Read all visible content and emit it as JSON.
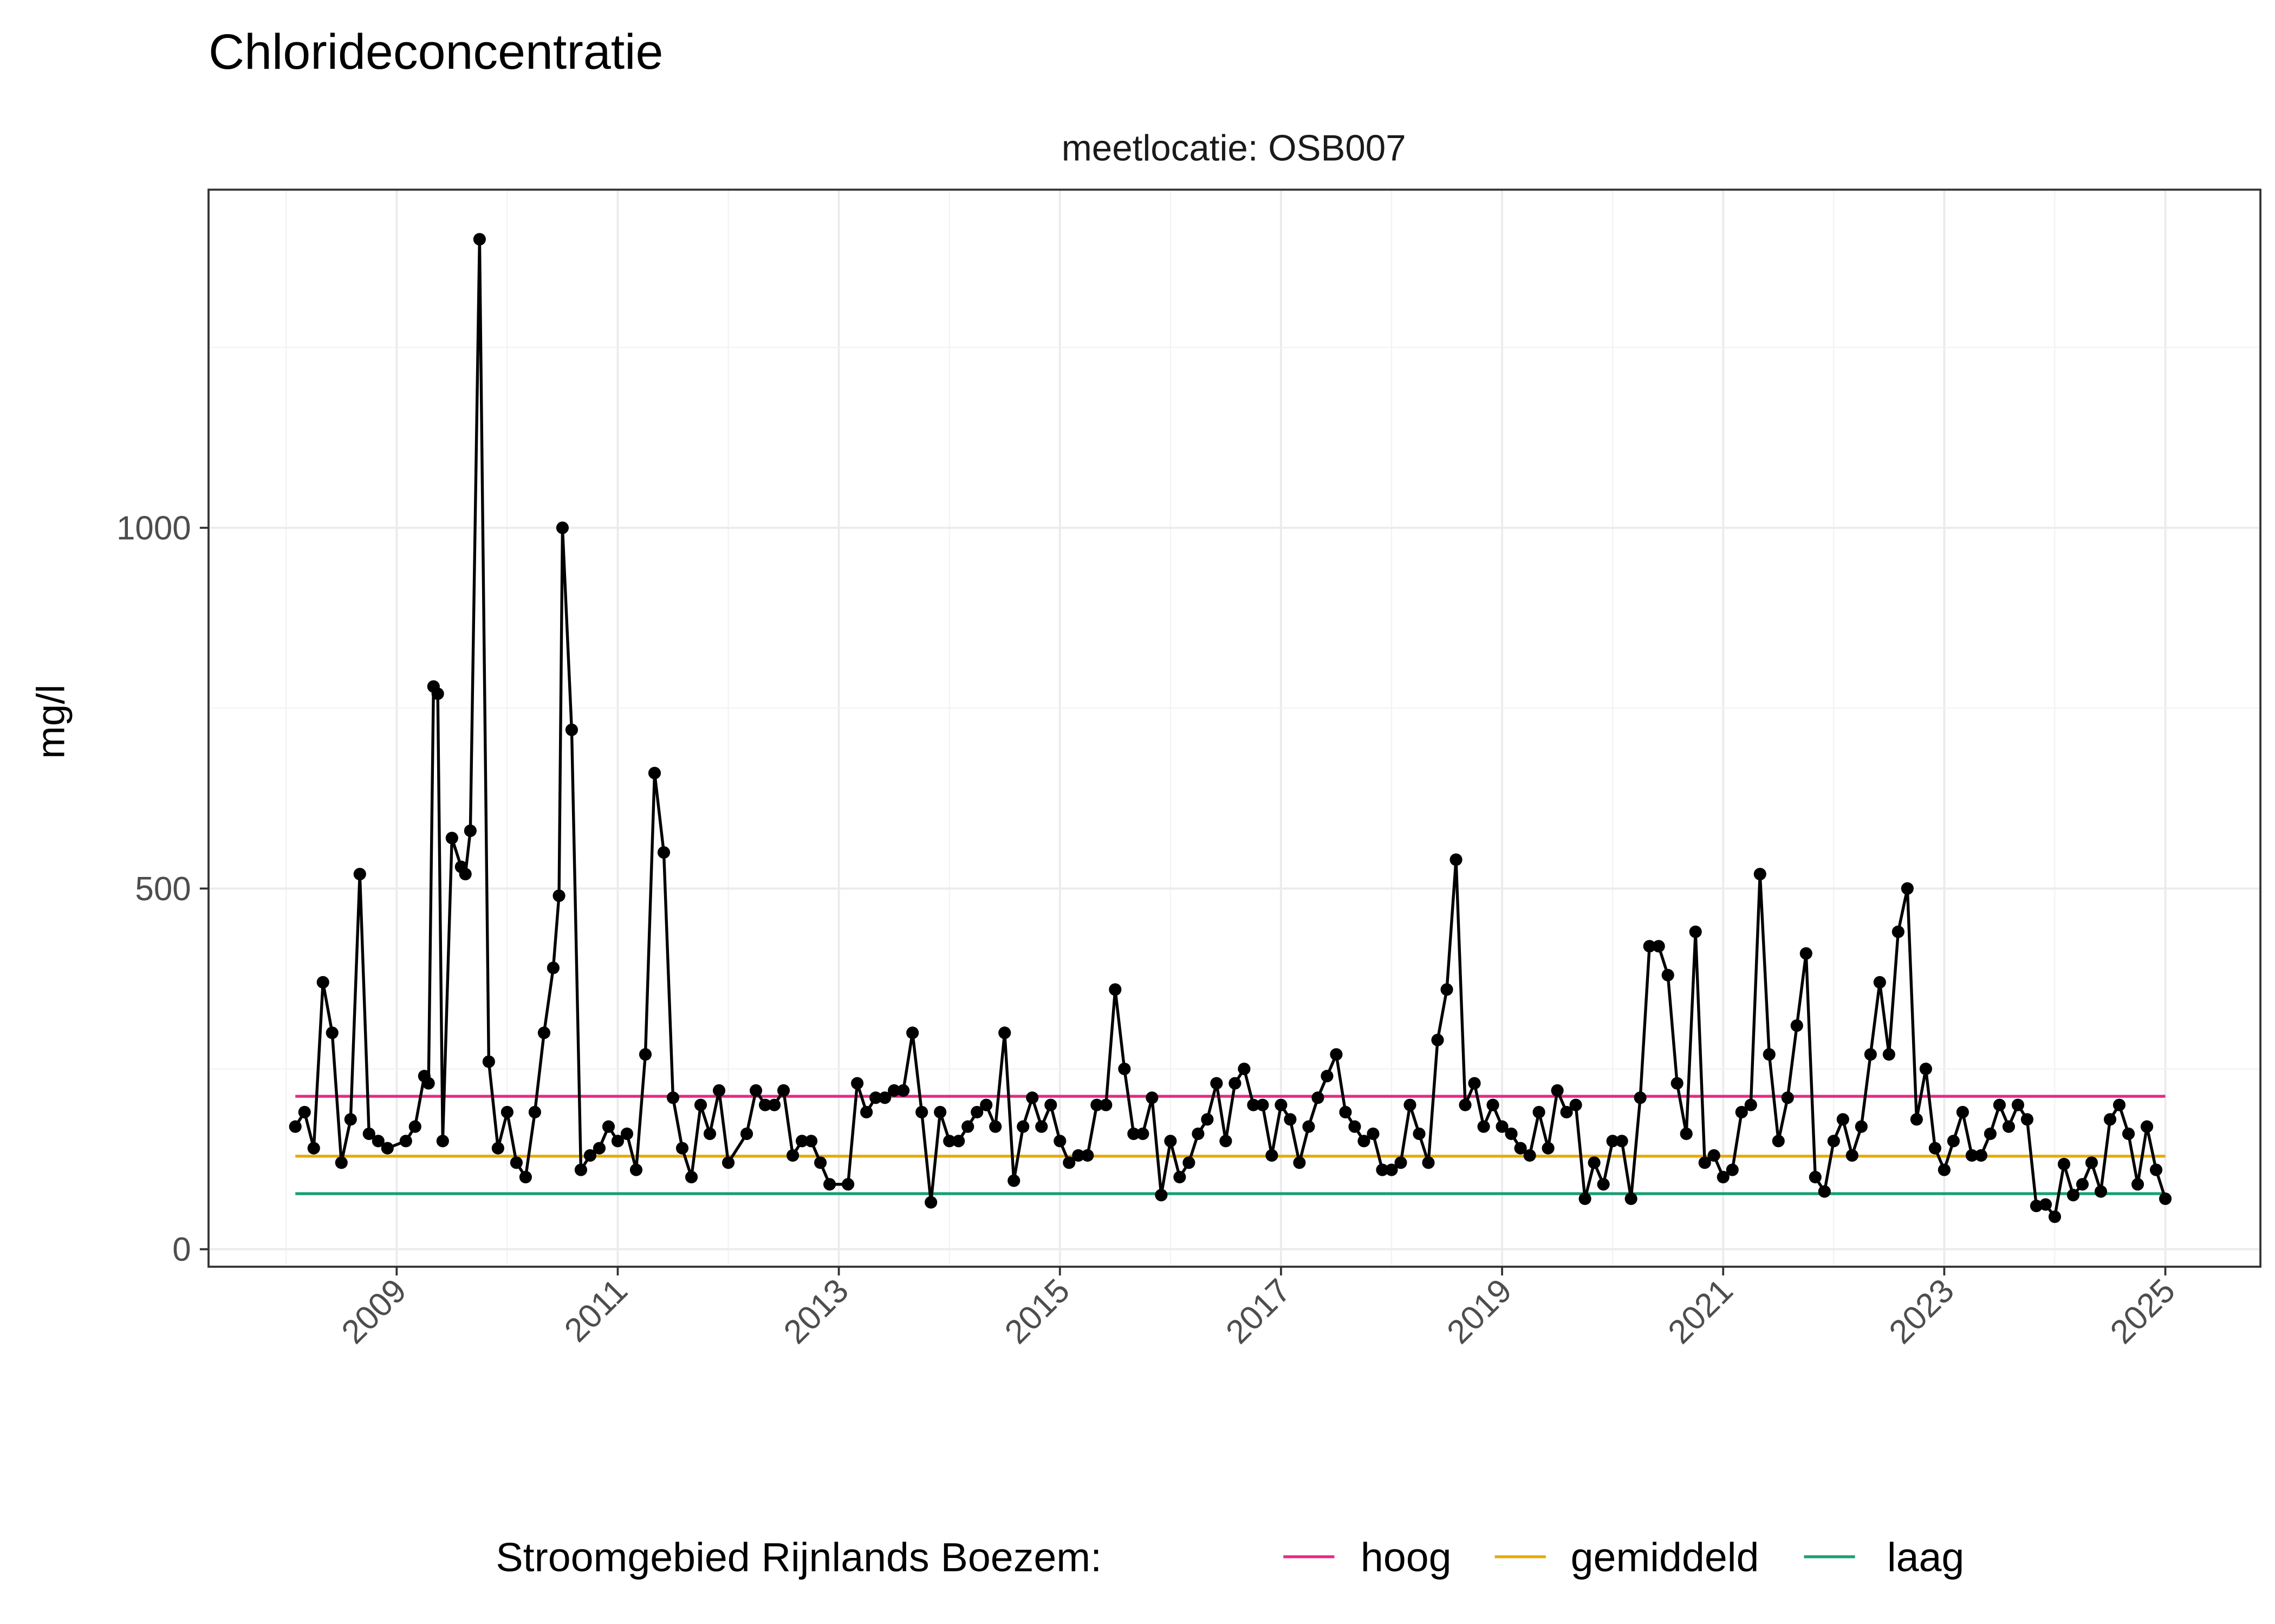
{
  "chart_data": {
    "type": "line",
    "title": "Chlorideconcentratie",
    "subtitle": "meetlocatie: OSB007",
    "xlabel": "",
    "ylabel": "mg/l",
    "xlim": [
      "2007-11",
      "2025-06"
    ],
    "ylim": [
      -25,
      1475
    ],
    "x_ticks": [
      "2009",
      "2011",
      "2013",
      "2015",
      "2017",
      "2019",
      "2021",
      "2023",
      "2025"
    ],
    "y_ticks": [
      0,
      500,
      1000
    ],
    "grid": true,
    "legend_position": "bottom",
    "legend_title": "Stroomgebied Rijnlands Boezem:",
    "reference_lines": [
      {
        "name": "hoog",
        "value": 212,
        "color": "#E7298A"
      },
      {
        "name": "gemiddeld",
        "value": 129,
        "color": "#E6AB02"
      },
      {
        "name": "laag",
        "value": 77,
        "color": "#1B9E77"
      }
    ],
    "series": [
      {
        "color": "#000000",
        "points": [
          [
            "2008-02",
            170
          ],
          [
            "2008-03",
            190
          ],
          [
            "2008-04",
            140
          ],
          [
            "2008-05",
            370
          ],
          [
            "2008-06",
            300
          ],
          [
            "2008-07",
            120
          ],
          [
            "2008-08",
            180
          ],
          [
            "2008-09",
            520
          ],
          [
            "2008-10",
            160
          ],
          [
            "2008-11",
            150
          ],
          [
            "2008-12",
            140
          ],
          [
            "2009-02",
            150
          ],
          [
            "2009-03",
            170
          ],
          [
            "2009-04",
            240
          ],
          [
            "2009-04-15",
            230
          ],
          [
            "2009-05",
            780
          ],
          [
            "2009-05-15",
            770
          ],
          [
            "2009-06",
            150
          ],
          [
            "2009-07",
            570
          ],
          [
            "2009-08",
            530
          ],
          [
            "2009-08-15",
            520
          ],
          [
            "2009-09",
            580
          ],
          [
            "2009-10",
            1400
          ],
          [
            "2009-11",
            260
          ],
          [
            "2009-12",
            140
          ],
          [
            "2010-01",
            190
          ],
          [
            "2010-02",
            120
          ],
          [
            "2010-03",
            100
          ],
          [
            "2010-04",
            190
          ],
          [
            "2010-05",
            300
          ],
          [
            "2010-06",
            390
          ],
          [
            "2010-06-20",
            490
          ],
          [
            "2010-07",
            1000
          ],
          [
            "2010-08",
            720
          ],
          [
            "2010-09",
            110
          ],
          [
            "2010-10",
            130
          ],
          [
            "2010-11",
            140
          ],
          [
            "2010-12",
            170
          ],
          [
            "2011-01",
            150
          ],
          [
            "2011-02",
            160
          ],
          [
            "2011-03",
            110
          ],
          [
            "2011-04",
            270
          ],
          [
            "2011-05",
            660
          ],
          [
            "2011-06",
            550
          ],
          [
            "2011-07",
            210
          ],
          [
            "2011-08",
            140
          ],
          [
            "2011-09",
            100
          ],
          [
            "2011-10",
            200
          ],
          [
            "2011-11",
            160
          ],
          [
            "2011-12",
            220
          ],
          [
            "2012-01",
            120
          ],
          [
            "2012-03",
            160
          ],
          [
            "2012-04",
            220
          ],
          [
            "2012-05",
            200
          ],
          [
            "2012-06",
            200
          ],
          [
            "2012-07",
            220
          ],
          [
            "2012-08",
            130
          ],
          [
            "2012-09",
            150
          ],
          [
            "2012-10",
            150
          ],
          [
            "2012-11",
            120
          ],
          [
            "2012-12",
            90
          ],
          [
            "2013-02",
            90
          ],
          [
            "2013-03",
            230
          ],
          [
            "2013-04",
            190
          ],
          [
            "2013-05",
            210
          ],
          [
            "2013-06",
            210
          ],
          [
            "2013-07",
            220
          ],
          [
            "2013-08",
            220
          ],
          [
            "2013-09",
            300
          ],
          [
            "2013-10",
            190
          ],
          [
            "2013-11",
            65
          ],
          [
            "2013-12",
            190
          ],
          [
            "2014-01",
            150
          ],
          [
            "2014-02",
            150
          ],
          [
            "2014-03",
            170
          ],
          [
            "2014-04",
            190
          ],
          [
            "2014-05",
            200
          ],
          [
            "2014-06",
            170
          ],
          [
            "2014-07",
            300
          ],
          [
            "2014-08",
            95
          ],
          [
            "2014-09",
            170
          ],
          [
            "2014-10",
            210
          ],
          [
            "2014-11",
            170
          ],
          [
            "2014-12",
            200
          ],
          [
            "2015-01",
            150
          ],
          [
            "2015-02",
            120
          ],
          [
            "2015-03",
            130
          ],
          [
            "2015-04",
            130
          ],
          [
            "2015-05",
            200
          ],
          [
            "2015-06",
            200
          ],
          [
            "2015-07",
            360
          ],
          [
            "2015-08",
            250
          ],
          [
            "2015-09",
            160
          ],
          [
            "2015-10",
            160
          ],
          [
            "2015-11",
            210
          ],
          [
            "2015-12",
            75
          ],
          [
            "2016-01",
            150
          ],
          [
            "2016-02",
            100
          ],
          [
            "2016-03",
            120
          ],
          [
            "2016-04",
            160
          ],
          [
            "2016-05",
            180
          ],
          [
            "2016-06",
            230
          ],
          [
            "2016-07",
            150
          ],
          [
            "2016-08",
            230
          ],
          [
            "2016-09",
            250
          ],
          [
            "2016-10",
            200
          ],
          [
            "2016-11",
            200
          ],
          [
            "2016-12",
            130
          ],
          [
            "2017-01",
            200
          ],
          [
            "2017-02",
            180
          ],
          [
            "2017-03",
            120
          ],
          [
            "2017-04",
            170
          ],
          [
            "2017-05",
            210
          ],
          [
            "2017-06",
            240
          ],
          [
            "2017-07",
            270
          ],
          [
            "2017-08",
            190
          ],
          [
            "2017-09",
            170
          ],
          [
            "2017-10",
            150
          ],
          [
            "2017-11",
            160
          ],
          [
            "2017-12",
            110
          ],
          [
            "2018-01",
            110
          ],
          [
            "2018-02",
            120
          ],
          [
            "2018-03",
            200
          ],
          [
            "2018-04",
            160
          ],
          [
            "2018-05",
            120
          ],
          [
            "2018-06",
            290
          ],
          [
            "2018-07",
            360
          ],
          [
            "2018-08",
            540
          ],
          [
            "2018-09",
            200
          ],
          [
            "2018-10",
            230
          ],
          [
            "2018-11",
            170
          ],
          [
            "2018-12",
            200
          ],
          [
            "2019-01",
            170
          ],
          [
            "2019-02",
            160
          ],
          [
            "2019-03",
            140
          ],
          [
            "2019-04",
            130
          ],
          [
            "2019-05",
            190
          ],
          [
            "2019-06",
            140
          ],
          [
            "2019-07",
            220
          ],
          [
            "2019-08",
            190
          ],
          [
            "2019-09",
            200
          ],
          [
            "2019-10",
            70
          ],
          [
            "2019-11",
            120
          ],
          [
            "2019-12",
            90
          ],
          [
            "2020-01",
            150
          ],
          [
            "2020-02",
            150
          ],
          [
            "2020-03",
            70
          ],
          [
            "2020-04",
            210
          ],
          [
            "2020-05",
            420
          ],
          [
            "2020-06",
            420
          ],
          [
            "2020-07",
            380
          ],
          [
            "2020-08",
            230
          ],
          [
            "2020-09",
            160
          ],
          [
            "2020-10",
            440
          ],
          [
            "2020-11",
            120
          ],
          [
            "2020-12",
            130
          ],
          [
            "2021-01",
            100
          ],
          [
            "2021-02",
            110
          ],
          [
            "2021-03",
            190
          ],
          [
            "2021-04",
            200
          ],
          [
            "2021-05",
            520
          ],
          [
            "2021-06",
            270
          ],
          [
            "2021-07",
            150
          ],
          [
            "2021-08",
            210
          ],
          [
            "2021-09",
            310
          ],
          [
            "2021-10",
            410
          ],
          [
            "2021-11",
            100
          ],
          [
            "2021-12",
            80
          ],
          [
            "2022-01",
            150
          ],
          [
            "2022-02",
            180
          ],
          [
            "2022-03",
            130
          ],
          [
            "2022-04",
            170
          ],
          [
            "2022-05",
            270
          ],
          [
            "2022-06",
            370
          ],
          [
            "2022-07",
            270
          ],
          [
            "2022-08",
            440
          ],
          [
            "2022-09",
            500
          ],
          [
            "2022-10",
            180
          ],
          [
            "2022-11",
            250
          ],
          [
            "2022-12",
            140
          ],
          [
            "2023-01",
            110
          ],
          [
            "2023-02",
            150
          ],
          [
            "2023-03",
            190
          ],
          [
            "2023-04",
            130
          ],
          [
            "2023-05",
            130
          ],
          [
            "2023-06",
            160
          ],
          [
            "2023-07",
            200
          ],
          [
            "2023-08",
            170
          ],
          [
            "2023-09",
            200
          ],
          [
            "2023-10",
            180
          ],
          [
            "2023-11",
            60
          ],
          [
            "2023-12",
            62
          ],
          [
            "2024-01",
            45
          ],
          [
            "2024-02",
            118
          ],
          [
            "2024-03",
            75
          ],
          [
            "2024-04",
            90
          ],
          [
            "2024-05",
            120
          ],
          [
            "2024-06",
            80
          ],
          [
            "2024-07",
            180
          ],
          [
            "2024-08",
            200
          ],
          [
            "2024-09",
            160
          ],
          [
            "2024-10",
            90
          ],
          [
            "2024-11",
            170
          ],
          [
            "2024-12",
            110
          ],
          [
            "2025-01",
            70
          ]
        ]
      }
    ]
  }
}
